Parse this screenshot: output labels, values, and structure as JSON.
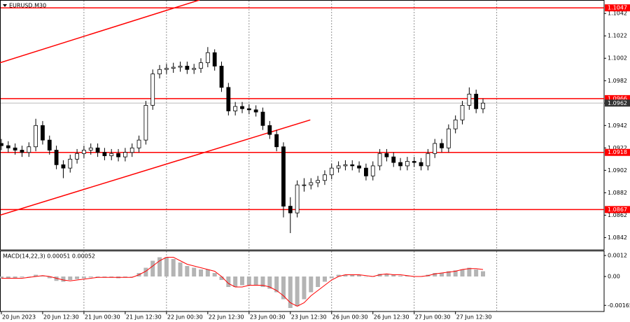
{
  "chart_data": [
    {
      "type": "candlestick",
      "title": "EURUSD,M30",
      "color": "#000000",
      "open": [
        1.0926,
        1.0924,
        1.0922,
        1.092,
        1.0918,
        1.0923,
        1.0942,
        1.0929,
        1.092,
        1.0907,
        1.0904,
        1.0912,
        1.0917,
        1.092,
        1.0922,
        1.0918,
        1.0915,
        1.0917,
        1.0914,
        1.0918,
        1.0922,
        1.0929,
        1.096,
        1.0988,
        1.0992,
        1.0993,
        1.0994,
        1.0995,
        1.0992,
        1.0993,
        1.0998,
        1.1007,
        1.0995,
        1.0976,
        1.0955,
        1.0959,
        1.0957,
        1.0956,
        1.0954,
        1.0942,
        1.0934,
        1.0923,
        1.087,
        1.0864,
        1.0889,
        1.0889,
        1.0891,
        1.0893,
        1.0898,
        1.0904,
        1.0906,
        1.0907,
        1.0906,
        1.0904,
        1.0897,
        1.0906,
        1.0917,
        1.0914,
        1.0909,
        1.0906,
        1.091,
        1.0909,
        1.0906,
        1.0917,
        1.0926,
        1.0922,
        1.0939,
        1.0947,
        1.096,
        1.097,
        1.0957
      ],
      "high": [
        1.093,
        1.0928,
        1.0926,
        1.0924,
        1.0927,
        1.0948,
        1.0946,
        1.0933,
        1.0924,
        1.0911,
        1.0916,
        1.0921,
        1.0924,
        1.0926,
        1.0926,
        1.0922,
        1.0921,
        1.0921,
        1.0922,
        1.0926,
        1.0933,
        1.0964,
        1.0992,
        1.0996,
        1.0997,
        1.0998,
        1.0999,
        1.0999,
        1.0997,
        1.1002,
        1.1012,
        1.101,
        1.0999,
        1.098,
        1.0963,
        1.0963,
        1.0961,
        1.096,
        1.0958,
        1.0946,
        1.0938,
        1.0927,
        1.0878,
        1.0893,
        1.0895,
        1.0895,
        1.0897,
        1.0902,
        1.0908,
        1.091,
        1.0911,
        1.0911,
        1.091,
        1.0908,
        1.091,
        1.0921,
        1.0921,
        1.0918,
        1.0913,
        1.0914,
        1.0914,
        1.0913,
        1.0921,
        1.093,
        1.093,
        1.0943,
        1.0951,
        1.0964,
        1.0976,
        1.0974,
        1.0966
      ],
      "low": [
        1.092,
        1.0918,
        1.0916,
        1.0914,
        1.0914,
        1.0919,
        1.0925,
        1.0916,
        1.0903,
        1.0895,
        1.09,
        1.0908,
        1.0913,
        1.0916,
        1.0914,
        1.0911,
        1.0911,
        1.091,
        1.091,
        1.0914,
        1.0918,
        1.0925,
        1.0956,
        1.0984,
        1.0988,
        1.0989,
        1.099,
        1.0988,
        1.0988,
        1.0989,
        1.0994,
        1.0991,
        1.0972,
        1.0951,
        1.0951,
        1.0953,
        1.0952,
        1.095,
        1.0938,
        1.093,
        1.0919,
        1.086,
        1.0846,
        1.086,
        1.0883,
        1.0885,
        1.0887,
        1.0889,
        1.0894,
        1.09,
        1.0902,
        1.0902,
        1.09,
        1.0893,
        1.0893,
        1.0902,
        1.091,
        1.0905,
        1.0902,
        1.0902,
        1.0905,
        1.0902,
        1.0902,
        1.0913,
        1.0918,
        1.0918,
        1.0935,
        1.0943,
        1.0956,
        1.0953,
        1.0953
      ],
      "close": [
        1.0924,
        1.0922,
        1.092,
        1.0918,
        1.0923,
        1.0942,
        1.0929,
        1.092,
        1.0907,
        1.0904,
        1.0912,
        1.0917,
        1.092,
        1.0922,
        1.0918,
        1.0915,
        1.0917,
        1.0914,
        1.0918,
        1.0922,
        1.0929,
        1.096,
        1.0988,
        1.0992,
        1.0993,
        1.0994,
        1.0995,
        1.0992,
        1.0993,
        1.0998,
        1.1007,
        1.0995,
        1.0976,
        1.0955,
        1.0959,
        1.0957,
        1.0956,
        1.0954,
        1.0942,
        1.0934,
        1.0923,
        1.087,
        1.0864,
        1.0889,
        1.0889,
        1.0891,
        1.0893,
        1.0898,
        1.0904,
        1.0906,
        1.0907,
        1.0906,
        1.0904,
        1.0897,
        1.0906,
        1.0917,
        1.0914,
        1.0909,
        1.0906,
        1.091,
        1.0909,
        1.0906,
        1.0917,
        1.0926,
        1.0922,
        1.0939,
        1.0947,
        1.096,
        1.097,
        1.0957,
        1.0962
      ],
      "xlim": [
        -0.2,
        87.6
      ],
      "xgrid": [
        12,
        24,
        36,
        48,
        60,
        72
      ],
      "ylim": [
        1.0831,
        1.1054
      ],
      "yticks": [
        1.1042,
        1.1022,
        1.1002,
        1.0982,
        1.0962,
        1.0942,
        1.0922,
        1.0902,
        1.0882,
        1.0862,
        1.0842
      ],
      "levels": [
        1.1047,
        1.0966,
        1.0918,
        1.0867
      ],
      "level_color": "#ff0000",
      "last_price": 1.0962,
      "trend_lines": [
        {
          "x": [
            -0.2,
            28.8
          ],
          "y": [
            1.0998,
            1.1054
          ]
        },
        {
          "x": [
            -0.2,
            44.9
          ],
          "y": [
            1.0862,
            1.0947
          ]
        }
      ]
    },
    {
      "type": "macd",
      "title": "MACD(14,22,3) 0.00051 0.00052",
      "series": [
        {
          "name": "histogram",
          "color": "#b4b4b4",
          "values": [
            -0.0001,
            -0.0001,
            -0.0001,
            -5e-05,
            0,
            0.0001,
            5e-05,
            -0.0001,
            -0.00025,
            -0.0003,
            -0.0002,
            -0.00015,
            -0.0001,
            -5e-05,
            -5e-05,
            -5e-05,
            -5e-05,
            -0.0001,
            -5e-05,
            0,
            0.0002,
            0.0005,
            0.0009,
            0.0011,
            0.0011,
            0.001,
            0.0008,
            0.0006,
            0.0005,
            0.0004,
            0.0004,
            0.0002,
            -0.0002,
            -0.0006,
            -0.0006,
            -0.0005,
            -0.0005,
            -0.0005,
            -0.0006,
            -0.0007,
            -0.0009,
            -0.0013,
            -0.0018,
            -0.0017,
            -0.0013,
            -0.0009,
            -0.0006,
            -0.0003,
            -0.0001,
            0.0001,
            0.0001,
            0.0001,
            0.0001,
            0,
            0,
            0.00015,
            0.00015,
            0.0001,
            5e-05,
            5e-05,
            0,
            0,
            0.0001,
            0.0002,
            0.0002,
            0.0003,
            0.00035,
            0.0004,
            0.0005,
            0.0004,
            0.0003
          ]
        },
        {
          "name": "signal",
          "color": "#ff0000",
          "values": [
            -0.0001,
            -0.0001,
            -0.0001,
            -0.0001,
            -5e-05,
            0,
            5e-05,
            0,
            -0.0001,
            -0.0002,
            -0.00025,
            -0.0002,
            -0.00015,
            -0.0001,
            -5e-05,
            -5e-05,
            -5e-05,
            -5e-05,
            -5e-05,
            -5e-05,
            0.0001,
            0.0003,
            0.0006,
            0.0009,
            0.0011,
            0.0011,
            0.0009,
            0.0007,
            0.0006,
            0.0005,
            0.0004,
            0.0003,
            0,
            -0.0004,
            -0.0006,
            -0.0006,
            -0.0005,
            -0.0005,
            -0.0005,
            -0.0006,
            -0.0008,
            -0.0011,
            -0.0015,
            -0.0017,
            -0.0015,
            -0.0011,
            -0.0008,
            -0.0005,
            -0.0002,
            0,
            0.0001,
            0.0001,
            0.0001,
            5e-05,
            0,
            0.0001,
            0.00015,
            0.0001,
            0.0001,
            5e-05,
            0,
            0,
            5e-05,
            0.00015,
            0.0002,
            0.00025,
            0.0003,
            0.0004,
            0.00045,
            0.00045,
            0.0004
          ]
        }
      ],
      "ylim": [
        -0.002,
        0.00148
      ],
      "yticks": [
        0.0012,
        {
          "value": 0,
          "label": "0.00"
        },
        -0.00165
      ],
      "xticks": [
        {
          "value": 0,
          "label": "20 Jun 2023"
        },
        {
          "value": 6,
          "label": "20 Jun 12:30"
        },
        {
          "value": 12,
          "label": "21 Jun 00:30"
        },
        {
          "value": 18,
          "label": "21 Jun 12:30"
        },
        {
          "value": 24,
          "label": "22 Jun 00:30"
        },
        {
          "value": 30,
          "label": "22 Jun 12:30"
        },
        {
          "value": 36,
          "label": "23 Jun 00:30"
        },
        {
          "value": 42,
          "label": "23 Jun 12:30"
        },
        {
          "value": 48,
          "label": "26 Jun 00:30"
        },
        {
          "value": 54,
          "label": "26 Jun 12:30"
        },
        {
          "value": 60,
          "label": "27 Jun 00:30"
        },
        {
          "value": 66,
          "label": "27 Jun 12:30"
        }
      ]
    }
  ]
}
